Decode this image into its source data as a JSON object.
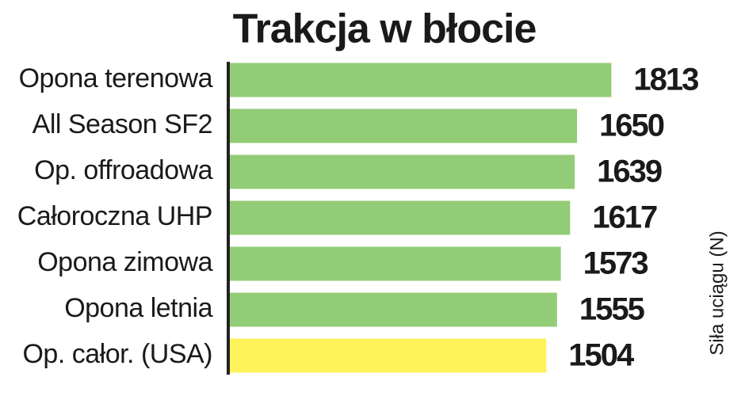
{
  "chart_data": {
    "type": "bar",
    "orientation": "horizontal",
    "title": "Trakcja w błocie",
    "x_label": "Siła uciągu (N)",
    "categories": [
      "Opona terenowa",
      "All Season SF2",
      "Op. offroadowa",
      "Całoroczna UHP",
      "Opona zimowa",
      "Opona letnia",
      "Op. całor. (USA)"
    ],
    "values": [
      1813,
      1650,
      1639,
      1617,
      1573,
      1555,
      1504
    ],
    "colors": [
      "#93cc76",
      "#93cc76",
      "#93cc76",
      "#93cc76",
      "#93cc76",
      "#93cc76",
      "#fef35a"
    ]
  }
}
